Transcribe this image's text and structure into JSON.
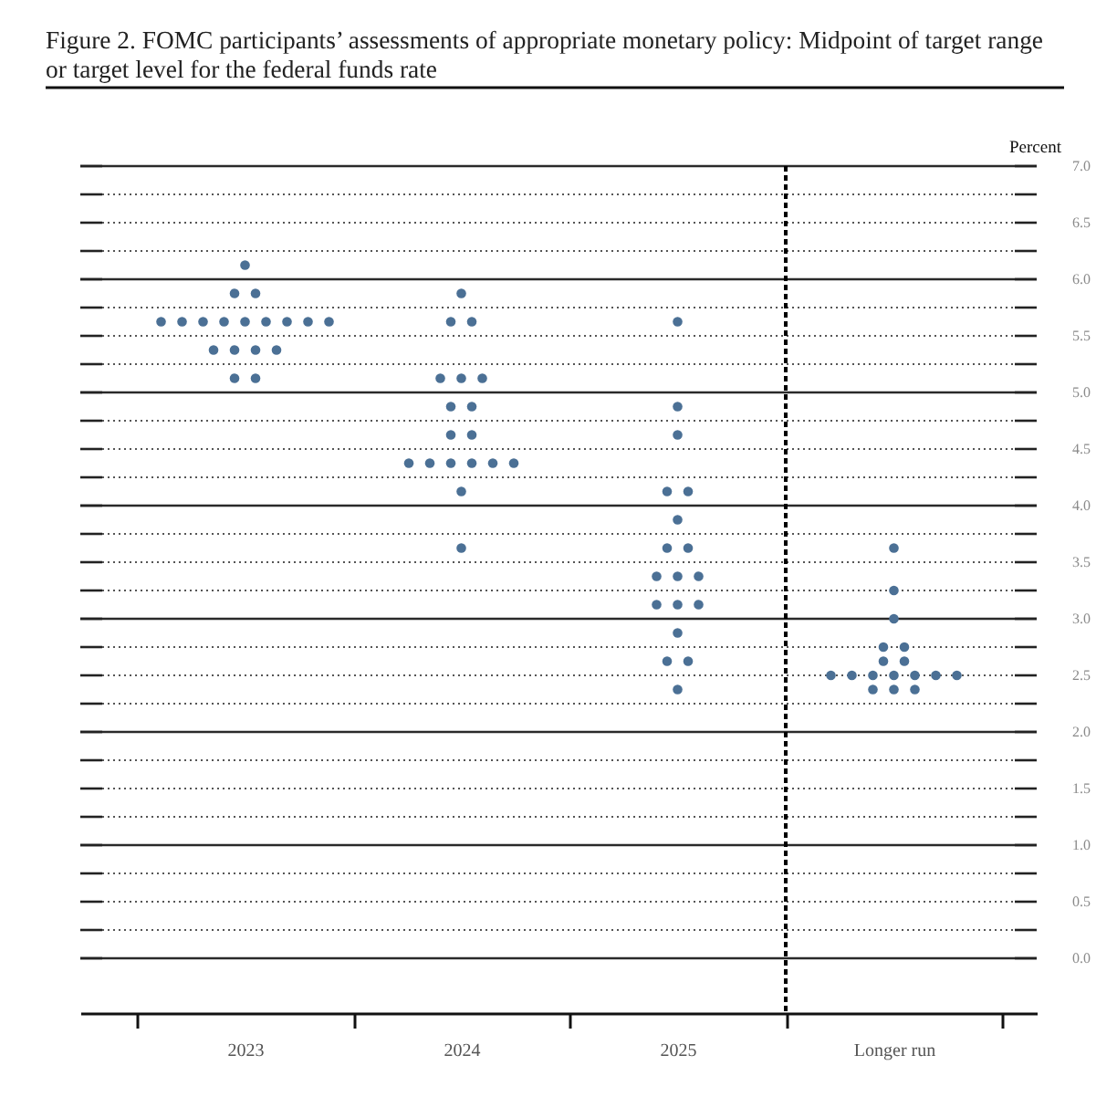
{
  "chart_data": {
    "type": "scatter",
    "title": "Figure 2.  FOMC participants’ assessments of appropriate monetary policy: Midpoint of target range or target level for the federal funds rate",
    "ylabel": "Percent",
    "categories": [
      "2023",
      "2024",
      "2025",
      "Longer run"
    ],
    "series": [
      {
        "color": "#4b7095",
        "values": [
          6.125,
          5.875,
          5.625,
          3.625
        ]
      },
      {
        "color": "#4b7095",
        "values": [
          5.875,
          5.625,
          4.875,
          3.25
        ]
      },
      {
        "color": "#4b7095",
        "values": [
          5.875,
          5.625,
          4.625,
          3.0
        ]
      },
      {
        "color": "#4b7095",
        "values": [
          5.625,
          5.125,
          4.125,
          2.75
        ]
      },
      {
        "color": "#4b7095",
        "values": [
          5.625,
          5.125,
          4.125,
          2.75
        ]
      },
      {
        "color": "#4b7095",
        "values": [
          5.625,
          5.125,
          3.875,
          2.625
        ]
      },
      {
        "color": "#4b7095",
        "values": [
          5.625,
          4.875,
          3.625,
          2.625
        ]
      },
      {
        "color": "#4b7095",
        "values": [
          5.625,
          4.875,
          3.625,
          2.5
        ]
      },
      {
        "color": "#4b7095",
        "values": [
          5.625,
          4.625,
          3.375,
          2.5
        ]
      },
      {
        "color": "#4b7095",
        "values": [
          5.625,
          4.625,
          3.375,
          2.5
        ]
      },
      {
        "color": "#4b7095",
        "values": [
          5.625,
          4.375,
          3.375,
          2.5
        ]
      },
      {
        "color": "#4b7095",
        "values": [
          5.625,
          4.375,
          3.125,
          2.5
        ]
      },
      {
        "color": "#4b7095",
        "values": [
          5.375,
          4.375,
          3.125,
          2.5
        ]
      },
      {
        "color": "#4b7095",
        "values": [
          5.375,
          4.375,
          3.125,
          2.5
        ]
      },
      {
        "color": "#4b7095",
        "values": [
          5.375,
          4.375,
          2.875,
          2.375
        ]
      },
      {
        "color": "#4b7095",
        "values": [
          5.375,
          4.375,
          2.625,
          2.375
        ]
      },
      {
        "color": "#4b7095",
        "values": [
          5.125,
          4.125,
          2.625,
          2.375
        ]
      },
      {
        "color": "#4b7095",
        "values": [
          5.125,
          3.625,
          2.375,
          null
        ]
      }
    ],
    "ylim": [
      0,
      7
    ],
    "yticks": [
      {
        "value": 0,
        "label": "0.0"
      },
      {
        "value": 0.25,
        "label": null
      },
      {
        "value": 0.5,
        "label": "0.5"
      },
      {
        "value": 0.75,
        "label": null
      },
      {
        "value": 1,
        "label": "1.0"
      },
      {
        "value": 1.25,
        "label": null
      },
      {
        "value": 1.5,
        "label": "1.5"
      },
      {
        "value": 1.75,
        "label": null
      },
      {
        "value": 2,
        "label": "2.0"
      },
      {
        "value": 2.25,
        "label": null
      },
      {
        "value": 2.5,
        "label": "2.5"
      },
      {
        "value": 2.75,
        "label": null
      },
      {
        "value": 3,
        "label": "3.0"
      },
      {
        "value": 3.25,
        "label": null
      },
      {
        "value": 3.5,
        "label": "3.5"
      },
      {
        "value": 3.75,
        "label": null
      },
      {
        "value": 4,
        "label": "4.0"
      },
      {
        "value": 4.25,
        "label": null
      },
      {
        "value": 4.5,
        "label": "4.5"
      },
      {
        "value": 4.75,
        "label": null
      },
      {
        "value": 5,
        "label": "5.0"
      },
      {
        "value": 5.25,
        "label": null
      },
      {
        "value": 5.5,
        "label": "5.5"
      },
      {
        "value": 5.75,
        "label": null
      },
      {
        "value": 6,
        "label": "6.0"
      },
      {
        "value": 6.25,
        "label": null
      },
      {
        "value": 6.5,
        "label": "6.5"
      },
      {
        "value": 6.75,
        "label": null
      },
      {
        "value": 7,
        "label": "7.0"
      }
    ],
    "grid": "y",
    "marker": "circle",
    "ref_lines": [
      {
        "axis": "x",
        "value": "Longer run",
        "line_style": "dashed",
        "color": "#000000"
      }
    ]
  }
}
